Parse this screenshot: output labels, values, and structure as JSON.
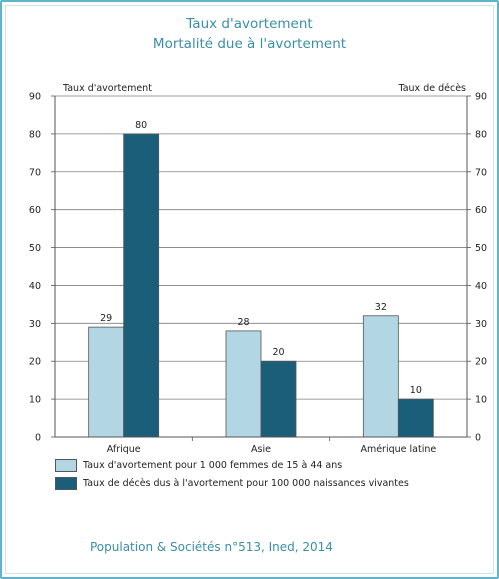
{
  "header": {
    "title": "Taux d'avortement",
    "subtitle": "Mortalité due à l'avortement"
  },
  "chart_data": {
    "type": "bar",
    "categories": [
      "Afrique",
      "Asie",
      "Amérique latine"
    ],
    "series": [
      {
        "name": "Taux d'avortement pour 1 000 femmes de 15 à 44 ans",
        "values": [
          29,
          28,
          32
        ],
        "color": "#b3d6e4"
      },
      {
        "name": "Taux de décès dus à l'avortement pour 100 000 naissances vivantes",
        "values": [
          80,
          20,
          10
        ],
        "color": "#1b5e7a"
      }
    ],
    "title": "Taux d'avortement / Mortalité due à l'avortement",
    "ylabel": "Taux d'avortement",
    "y2label": "Taux de décès",
    "ylim": [
      0,
      90
    ],
    "y2lim": [
      0,
      90
    ],
    "yticks": [
      0,
      10,
      20,
      30,
      40,
      50,
      60,
      70,
      80,
      90
    ],
    "grid": true,
    "legend_position": "bottom"
  },
  "source": "Population & Sociétés n°513, Ined, 2014"
}
